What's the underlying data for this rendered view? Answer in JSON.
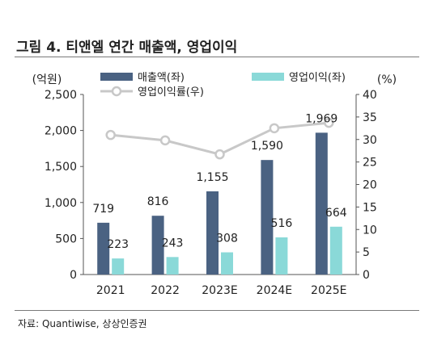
{
  "header": {
    "title": "그림 4. 티앤엘 연간 매출액, 영업이익"
  },
  "footer": {
    "source": "자료: Quantiwise, 상상인증권"
  },
  "colors": {
    "revenue": "#4a6282",
    "operating_profit": "#8ad9d8",
    "margin": "#c8c8c8"
  },
  "chart_data": {
    "type": "bar",
    "categories": [
      "2021",
      "2022",
      "2023E",
      "2024E",
      "2025E"
    ],
    "series": [
      {
        "name": "매출액(좌)",
        "kind": "bar",
        "axis": "left",
        "values": [
          719,
          816,
          1155,
          1590,
          1969
        ],
        "labels": [
          "719",
          "816",
          "1,155",
          "1,590",
          "1,969"
        ]
      },
      {
        "name": "영업이익(좌)",
        "kind": "bar",
        "axis": "left",
        "values": [
          223,
          243,
          308,
          516,
          664
        ],
        "labels": [
          "223",
          "243",
          "308",
          "516",
          "664"
        ]
      },
      {
        "name": "영업이익률(우)",
        "kind": "line",
        "axis": "right",
        "values": [
          31.0,
          29.8,
          26.7,
          32.5,
          33.7
        ]
      }
    ],
    "y_left": {
      "unit": "(억원)",
      "lim": [
        0,
        2500
      ],
      "ticks": [
        0,
        500,
        1000,
        1500,
        2000,
        2500
      ],
      "tick_labels": [
        "0",
        "500",
        "1,000",
        "1,500",
        "2,000",
        "2,500"
      ]
    },
    "y_right": {
      "unit": "(%)",
      "lim": [
        0,
        40
      ],
      "ticks": [
        0,
        5,
        10,
        15,
        20,
        25,
        30,
        35,
        40
      ],
      "tick_labels": [
        "0",
        "5",
        "10",
        "15",
        "20",
        "25",
        "30",
        "35",
        "40"
      ]
    },
    "grid": false,
    "legend": "top"
  }
}
